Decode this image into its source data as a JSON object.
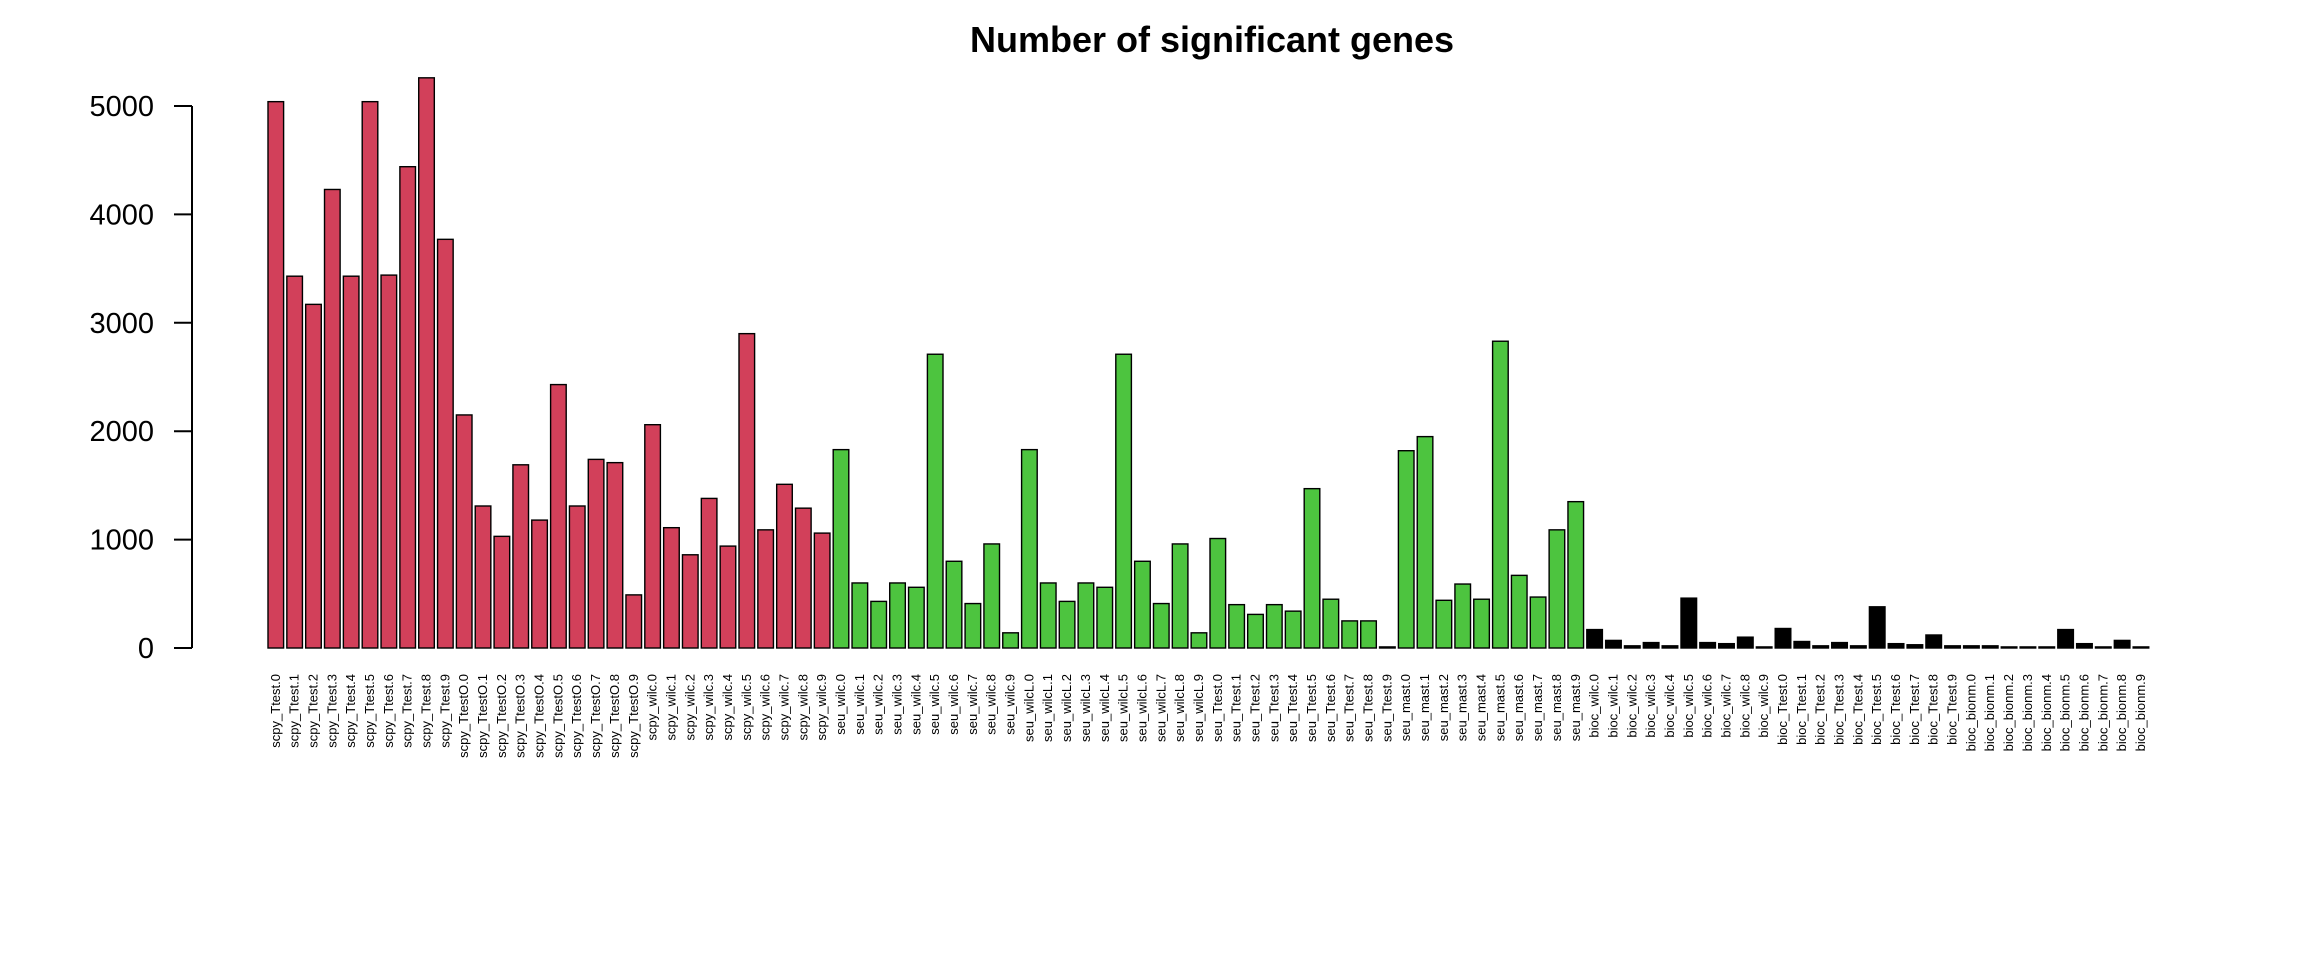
{
  "chart_data": {
    "type": "bar",
    "title": "Number of significant genes",
    "xlabel": "",
    "ylabel": "",
    "ylim": [
      0,
      5300
    ],
    "yticks": [
      0,
      1000,
      2000,
      3000,
      4000,
      5000
    ],
    "grid": false,
    "legend": "none",
    "colors": {
      "scpy": "#D2405A",
      "seu": "#4DC43F",
      "bioc": "#000000",
      "outline": "#000000"
    },
    "groups": [
      {
        "key": "scpy",
        "start": 0,
        "end": 29
      },
      {
        "key": "seu",
        "start": 30,
        "end": 69
      },
      {
        "key": "bioc",
        "start": 70,
        "end": 99
      }
    ],
    "categories": [
      "scpy_Ttest.0",
      "scpy_Ttest.1",
      "scpy_Ttest.2",
      "scpy_Ttest.3",
      "scpy_Ttest.4",
      "scpy_Ttest.5",
      "scpy_Ttest.6",
      "scpy_Ttest.7",
      "scpy_Ttest.8",
      "scpy_Ttest.9",
      "scpy_TtestO.0",
      "scpy_TtestO.1",
      "scpy_TtestO.2",
      "scpy_TtestO.3",
      "scpy_TtestO.4",
      "scpy_TtestO.5",
      "scpy_TtestO.6",
      "scpy_TtestO.7",
      "scpy_TtestO.8",
      "scpy_TtestO.9",
      "scpy_wilc.0",
      "scpy_wilc.1",
      "scpy_wilc.2",
      "scpy_wilc.3",
      "scpy_wilc.4",
      "scpy_wilc.5",
      "scpy_wilc.6",
      "scpy_wilc.7",
      "scpy_wilc.8",
      "scpy_wilc.9",
      "seu_wilc.0",
      "seu_wilc.1",
      "seu_wilc.2",
      "seu_wilc.3",
      "seu_wilc.4",
      "seu_wilc.5",
      "seu_wilc.6",
      "seu_wilc.7",
      "seu_wilc.8",
      "seu_wilc.9",
      "seu_wilcL.0",
      "seu_wilcL.1",
      "seu_wilcL.2",
      "seu_wilcL.3",
      "seu_wilcL.4",
      "seu_wilcL.5",
      "seu_wilcL.6",
      "seu_wilcL.7",
      "seu_wilcL.8",
      "seu_wilcL.9",
      "seu_Ttest.0",
      "seu_Ttest.1",
      "seu_Ttest.2",
      "seu_Ttest.3",
      "seu_Ttest.4",
      "seu_Ttest.5",
      "seu_Ttest.6",
      "seu_Ttest.7",
      "seu_Ttest.8",
      "seu_Ttest.9",
      "seu_mast.0",
      "seu_mast.1",
      "seu_mast.2",
      "seu_mast.3",
      "seu_mast.4",
      "seu_mast.5",
      "seu_mast.6",
      "seu_mast.7",
      "seu_mast.8",
      "seu_mast.9",
      "bioc_wilc.0",
      "bioc_wilc.1",
      "bioc_wilc.2",
      "bioc_wilc.3",
      "bioc_wilc.4",
      "bioc_wilc.5",
      "bioc_wilc.6",
      "bioc_wilc.7",
      "bioc_wilc.8",
      "bioc_wilc.9",
      "bioc_Ttest.0",
      "bioc_Ttest.1",
      "bioc_Ttest.2",
      "bioc_Ttest.3",
      "bioc_Ttest.4",
      "bioc_Ttest.5",
      "bioc_Ttest.6",
      "bioc_Ttest.7",
      "bioc_Ttest.8",
      "bioc_Ttest.9",
      "bioc_bionm.0",
      "bioc_bionm.1",
      "bioc_bionm.2",
      "bioc_bionm.3",
      "bioc_bionm.4",
      "bioc_bionm.5",
      "bioc_bionm.6",
      "bioc_bionm.7",
      "bioc_bionm.8",
      "bioc_bionm.9"
    ],
    "values": [
      5040,
      3430,
      3170,
      4230,
      3430,
      5040,
      3440,
      4440,
      5260,
      3770,
      2150,
      1310,
      1030,
      1690,
      1180,
      2430,
      1310,
      1740,
      1710,
      490,
      2060,
      1110,
      860,
      1380,
      940,
      2900,
      1090,
      1510,
      1290,
      1060,
      1830,
      600,
      430,
      600,
      560,
      2710,
      800,
      410,
      960,
      140,
      1830,
      600,
      430,
      600,
      560,
      2710,
      800,
      410,
      960,
      140,
      1010,
      400,
      310,
      400,
      340,
      1470,
      450,
      250,
      250,
      10,
      1820,
      1950,
      440,
      590,
      450,
      2830,
      670,
      470,
      1090,
      1350,
      170,
      70,
      20,
      50,
      20,
      460,
      50,
      40,
      100,
      10,
      180,
      60,
      20,
      50,
      20,
      380,
      40,
      30,
      120,
      20,
      20,
      20,
      10,
      10,
      10,
      170,
      40,
      10,
      70,
      10
    ]
  }
}
